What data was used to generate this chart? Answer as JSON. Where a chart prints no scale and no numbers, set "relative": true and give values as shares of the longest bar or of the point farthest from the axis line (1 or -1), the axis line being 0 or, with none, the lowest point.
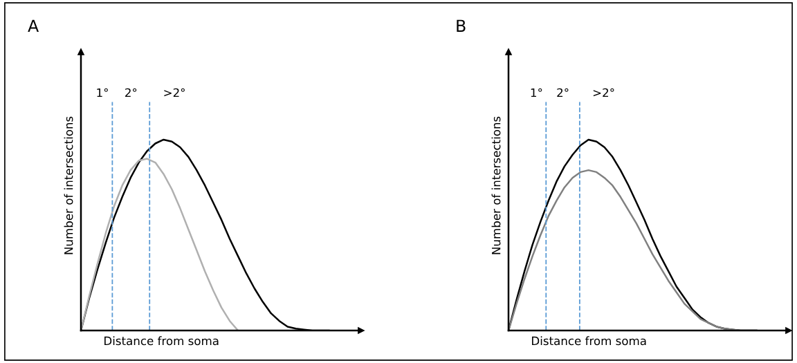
{
  "chart_data": [
    {
      "type": "line",
      "title": "A",
      "xlabel": "Distance from soma",
      "ylabel": "Number of intersections",
      "relative": true,
      "categories": [
        null,
        null,
        null,
        null,
        null,
        null,
        null,
        null,
        null,
        null,
        null,
        null,
        null,
        null,
        null,
        null,
        null,
        null,
        null,
        null,
        null,
        null,
        null,
        null,
        null,
        null,
        null,
        null,
        null,
        null,
        null
      ],
      "series": [
        {
          "color": "#000000",
          "values": [
            0,
            0.17,
            0.32,
            0.46,
            0.59,
            0.7,
            0.8,
            0.88,
            0.94,
            0.98,
            1.0,
            0.99,
            0.96,
            0.91,
            0.84,
            0.76,
            0.67,
            0.58,
            0.48,
            0.39,
            0.3,
            0.22,
            0.15,
            0.09,
            0.05,
            0.02,
            0.01,
            0.005,
            0,
            0,
            0
          ]
        },
        {
          "color": "#b0b0b0",
          "values": [
            0,
            0.18,
            0.35,
            0.51,
            0.65,
            0.76,
            0.84,
            0.89,
            0.9,
            0.88,
            0.82,
            0.74,
            0.64,
            0.53,
            0.42,
            0.31,
            0.21,
            0.12,
            0.05,
            0,
            null,
            null,
            null,
            null,
            null,
            null,
            null,
            null,
            null,
            null,
            null
          ]
        }
      ],
      "annotations": [
        "1°",
        "2°",
        ">2°"
      ]
    },
    {
      "type": "line",
      "title": "B",
      "xlabel": "Distance from soma",
      "ylabel": "Number of intersections",
      "relative": true,
      "categories": [
        null,
        null,
        null,
        null,
        null,
        null,
        null,
        null,
        null,
        null,
        null,
        null,
        null,
        null,
        null,
        null,
        null,
        null,
        null,
        null,
        null,
        null,
        null,
        null,
        null,
        null,
        null,
        null,
        null,
        null,
        null,
        null
      ],
      "series": [
        {
          "color": "#000000",
          "values": [
            0,
            0.16,
            0.31,
            0.45,
            0.57,
            0.68,
            0.78,
            0.86,
            0.92,
            0.97,
            1.0,
            0.99,
            0.96,
            0.91,
            0.84,
            0.76,
            0.67,
            0.58,
            0.48,
            0.39,
            0.31,
            0.23,
            0.17,
            0.11,
            0.07,
            0.04,
            0.02,
            0.01,
            0.005,
            0,
            0,
            0
          ]
        },
        {
          "color": "#808080",
          "values": [
            0,
            0.14,
            0.27,
            0.39,
            0.5,
            0.6,
            0.68,
            0.75,
            0.8,
            0.83,
            0.84,
            0.83,
            0.8,
            0.76,
            0.7,
            0.63,
            0.56,
            0.48,
            0.4,
            0.33,
            0.26,
            0.2,
            0.14,
            0.1,
            0.06,
            0.04,
            0.02,
            0.01,
            0.005,
            0,
            0,
            0
          ]
        }
      ],
      "annotations": [
        "1°",
        "2°",
        ">2°"
      ]
    }
  ]
}
